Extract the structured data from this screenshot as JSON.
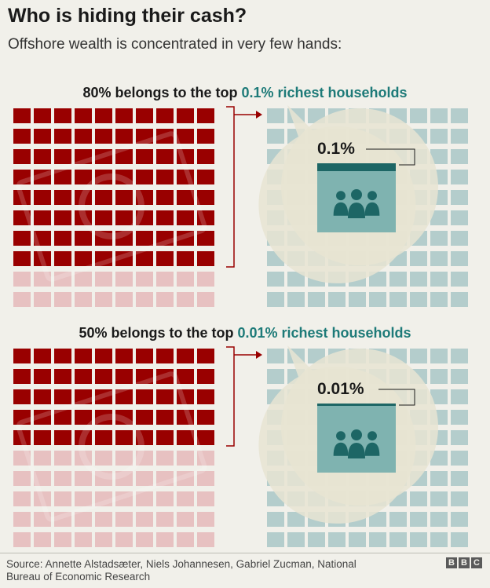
{
  "title": "Who is hiding their cash?",
  "subtitle": "Offshore wealth is concentrated in very few hands:",
  "chart_data": [
    {
      "type": "waffle",
      "heading_prefix": "80% belongs to the top ",
      "heading_highlight": "0.1% richest households",
      "wealth_share_percent": 80,
      "top_group_label": "0.1%",
      "top_group_percent": 0.1,
      "grid_rows": 10,
      "grid_cols": 10
    },
    {
      "type": "waffle",
      "heading_prefix": "50% belongs to the top ",
      "heading_highlight": "0.01% richest households",
      "wealth_share_percent": 50,
      "top_group_label": "0.01%",
      "top_group_percent": 0.01,
      "grid_rows": 10,
      "grid_cols": 10
    }
  ],
  "colors": {
    "wealth_dark": "#990000",
    "wealth_light": "#e7c1c1",
    "households": "#b4cdcc",
    "accent_teal": "#1d6665",
    "people_box": "#7fb3b0",
    "bubble": "#e8e4d2",
    "bracket": "#990000"
  },
  "icons": {
    "people": "group-of-people-icon",
    "dollar": "dollar-coin-icon"
  },
  "source": "Source: Annette Alstadsæter, Niels Johannesen, Gabriel Zucman, National Bureau of Economic Research",
  "brand": [
    "B",
    "B",
    "C"
  ]
}
